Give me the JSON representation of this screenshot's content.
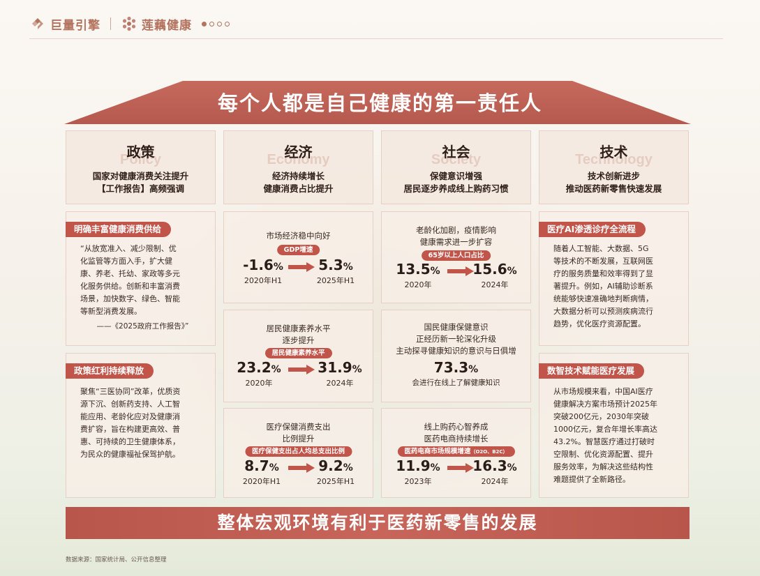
{
  "brand": {
    "logo1": "巨量引擎",
    "logo2": "莲藕健康",
    "pages_total": 4,
    "page_active": 1,
    "accent": "#c2554a"
  },
  "roof_title": "每个人都是自己健康的第一责任人",
  "pillars": [
    {
      "title": "政策",
      "en": "Policy",
      "desc": [
        "国家对健康消费关注提升",
        "【工作报告】高频强调"
      ]
    },
    {
      "title": "经济",
      "en": "Economy",
      "desc": [
        "经济持续增长",
        "健康消费占比提升"
      ]
    },
    {
      "title": "社会",
      "en": "Society",
      "desc": [
        "保健意识增强",
        "居民逐步养成线上购药习惯"
      ]
    },
    {
      "title": "技术",
      "en": "Technology",
      "desc": [
        "技术创新进步",
        "推动医药新零售快速发展"
      ]
    }
  ],
  "policy_cards": [
    {
      "tag": "明确丰富健康消费供给",
      "lines": [
        "“从放宽准入、减少限制、优",
        "化监管等方面入手，扩大健",
        "康、养老、托幼、家政等多元",
        "化服务供给。创新和丰富消费",
        "场景，加快数字、绿色、智能",
        "等新型消费发展。"
      ],
      "source": "——《2025政府工作报告》”"
    },
    {
      "tag": "政策红利持续释放",
      "lines": [
        "聚焦“三医协同”改革，优质资",
        "源下沉、创新药支持、人工智",
        "能应用、老龄化应对及健康消",
        "费扩容，旨在构建更高效、普",
        "惠、可持续的卫生健康体系，",
        "为民众的健康福祉保驾护航。"
      ]
    }
  ],
  "economy_cards": [
    {
      "title": [
        "市场经济稳中向好"
      ],
      "pill": "GDP增速",
      "from_val": "-1.6",
      "from_year": "2020年H1",
      "to_val": "5.3",
      "to_year": "2025年H1",
      "unit": "%"
    },
    {
      "title": [
        "居民健康素养水平",
        "逐步提升"
      ],
      "pill": "居民健康素养水平",
      "from_val": "23.2",
      "from_year": "2020年",
      "to_val": "31.9",
      "to_year": "2024年",
      "unit": "%"
    },
    {
      "title": [
        "医疗保健消费支出",
        "比例提升"
      ],
      "pill": "医疗保健支出占人均总支出比例",
      "from_val": "8.7",
      "from_year": "2020年H1",
      "to_val": "9.2",
      "to_year": "2025年H1",
      "unit": "%"
    }
  ],
  "society_cards": [
    {
      "title": [
        "老龄化加剧，疫情影响",
        "健康需求进一步扩容"
      ],
      "pill": "65岁以上人口占比",
      "from_val": "13.5",
      "from_year": "2020年",
      "to_val": "15.6",
      "to_year": "2024年",
      "unit": "%"
    },
    {
      "title": [
        "国民健康保健意识",
        "正经历新一轮深化升级",
        "主动探寻健康知识的意识与日俱增"
      ],
      "big_val": "73.3",
      "unit": "%",
      "caption": "会进行在线上了解健康知识"
    },
    {
      "title": [
        "线上购药心智养成",
        "医药电商持续增长"
      ],
      "pill": "医药电商市场规模增速",
      "pill_small": "（O2O、B2C）",
      "from_val": "11.9",
      "from_year": "2023年",
      "to_val": "16.3",
      "to_year": "2024年",
      "unit": "%"
    }
  ],
  "tech_cards": [
    {
      "tag": "医疗AI渗透诊疗全流程",
      "lines": [
        "随着人工智能、大数据、5G",
        "等技术的不断发展，互联网医",
        "疗的服务质量和效率得到了显",
        "著提升。例如，AI辅助诊断系",
        "统能够快速准确地判断病情，",
        "大数据分析可以预测疾病流行",
        "趋势，优化医疗资源配置。"
      ]
    },
    {
      "tag": "数智技术赋能医疗发展",
      "lines": [
        "从市场规模来看，中国AI医疗",
        "健康解决方案市场预计2025年",
        "突破200亿元，2030年突破",
        "1000亿元，复合年增长率高达",
        "43.2%。智慧医疗通过打破时",
        "空限制、优化资源配置、提升",
        "服务效率，为解决这些结构性",
        "难题提供了全新路径。"
      ]
    }
  ],
  "base_title": "整体宏观环境有利于医药新零售的发展",
  "footnote": "数据来源：国家统计局、公开信息整理"
}
